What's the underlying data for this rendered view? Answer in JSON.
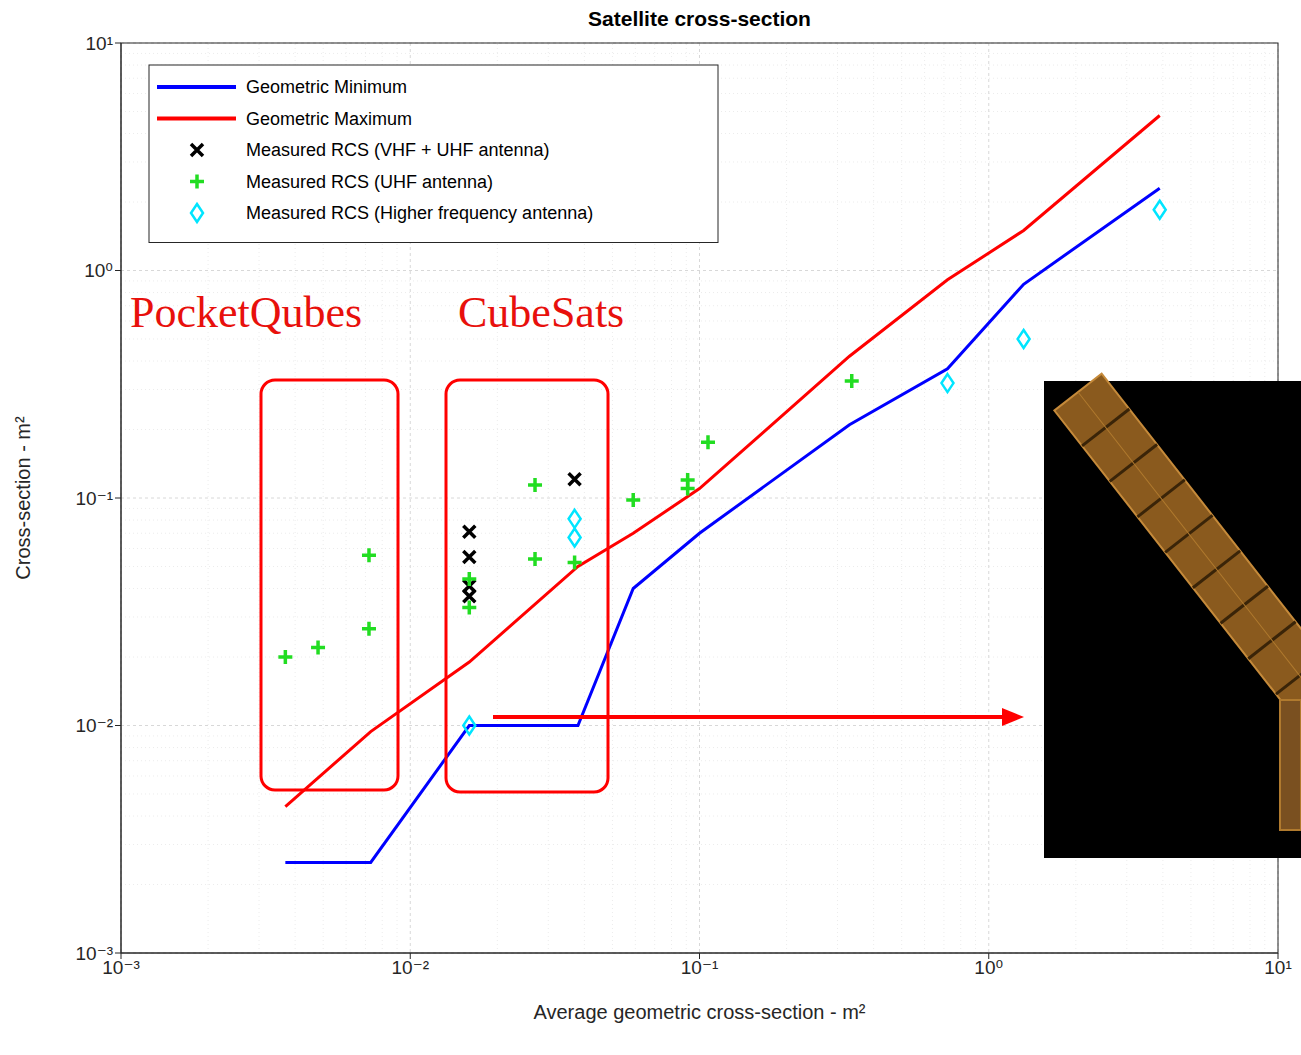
{
  "chart_data": {
    "type": "scatter",
    "title": "Satellite cross-section",
    "x_label": "Average geometric cross-section - m²",
    "y_label": "Cross-section - m²",
    "log": true,
    "grid": true,
    "legend": "upper left",
    "xlim": [
      0.001,
      10
    ],
    "ylim": [
      0.001,
      10
    ],
    "xticks": [
      {
        "value": 0.001,
        "label": "10⁻³"
      },
      {
        "value": 0.01,
        "label": "10⁻²"
      },
      {
        "value": 0.1,
        "label": "10⁻¹"
      },
      {
        "value": 1,
        "label": "10⁰"
      },
      {
        "value": 10,
        "label": "10¹"
      }
    ],
    "yticks": [
      {
        "value": 0.001,
        "label": "10⁻³"
      },
      {
        "value": 0.01,
        "label": "10⁻²"
      },
      {
        "value": 0.1,
        "label": "10⁻¹"
      },
      {
        "value": 1,
        "label": "10⁰"
      },
      {
        "value": 10,
        "label": "10¹"
      }
    ],
    "series": [
      {
        "name": "Geometric Minimum",
        "type": "line",
        "color": "#0000ff",
        "x": [
          0.0037,
          0.0073,
          0.016,
          0.038,
          0.059,
          0.1,
          0.33,
          0.72,
          1.32,
          3.9
        ],
        "values": [
          0.0025,
          0.0025,
          0.01,
          0.01,
          0.04,
          0.07,
          0.21,
          0.37,
          0.87,
          2.3
        ]
      },
      {
        "name": "Geometric Maximum",
        "type": "line",
        "color": "#ff0000",
        "x": [
          0.0037,
          0.0073,
          0.016,
          0.038,
          0.059,
          0.1,
          0.33,
          0.72,
          1.32,
          3.9
        ],
        "values": [
          0.0044,
          0.0094,
          0.019,
          0.05,
          0.07,
          0.11,
          0.42,
          0.91,
          1.5,
          4.8
        ]
      },
      {
        "name": "Measured RCS (VHF + UHF antenna)",
        "type": "scatter",
        "color": "#000000",
        "marker": "x",
        "x": [
          0.016,
          0.016,
          0.016,
          0.016,
          0.037
        ],
        "values": [
          0.071,
          0.055,
          0.041,
          0.037,
          0.121
        ]
      },
      {
        "name": "Measured RCS (UHF antenna)",
        "type": "scatter",
        "color": "#22dd22",
        "marker": "plus",
        "x": [
          0.0037,
          0.0048,
          0.0072,
          0.0072,
          0.016,
          0.016,
          0.027,
          0.027,
          0.037,
          0.059,
          0.091,
          0.091,
          0.107,
          0.336
        ],
        "values": [
          0.02,
          0.022,
          0.056,
          0.0266,
          0.033,
          0.044,
          0.114,
          0.054,
          0.052,
          0.098,
          0.12,
          0.11,
          0.176,
          0.327
        ]
      },
      {
        "name": "Measured RCS (Higher frequency antenna)",
        "type": "scatter",
        "color": "#00e5ff",
        "marker": "diamond",
        "x": [
          0.016,
          0.037,
          0.037,
          0.72,
          1.32,
          3.9
        ],
        "values": [
          0.01,
          0.081,
          0.067,
          0.32,
          0.5,
          1.85
        ]
      }
    ],
    "annotations": [
      "PocketQubes",
      "CubeSats"
    ]
  }
}
